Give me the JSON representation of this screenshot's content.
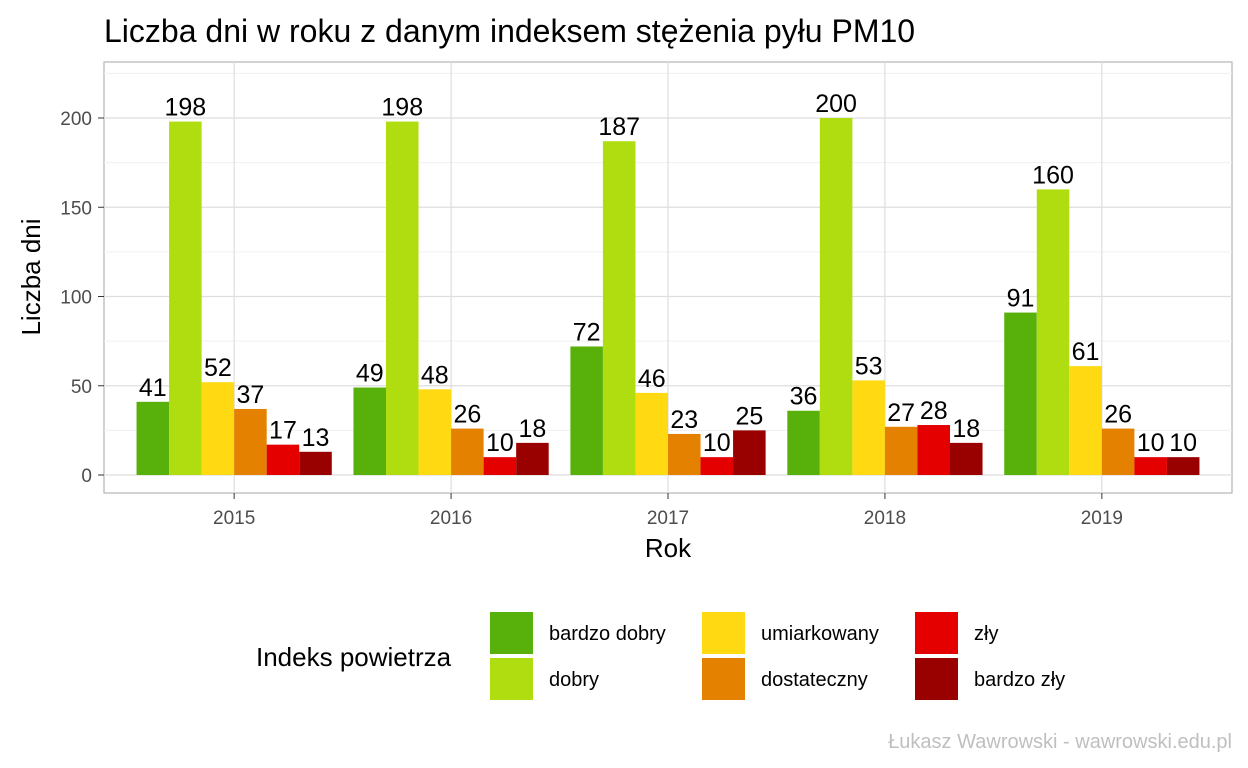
{
  "chart_data": {
    "type": "bar",
    "title": "Liczba dni w roku z danym indeksem stężenia pyłu PM10",
    "xlabel": "Rok",
    "ylabel": "Liczba dni",
    "categories": [
      "2015",
      "2016",
      "2017",
      "2018",
      "2019"
    ],
    "ylim": [
      -10,
      230
    ],
    "yticks": [
      0,
      50,
      100,
      150,
      200
    ],
    "grid": true,
    "legend_position": "bottom",
    "legend_title": "Indeks powietrza",
    "series": [
      {
        "name": "bardzo dobry",
        "color": "#58b10b",
        "values": [
          41,
          49,
          72,
          36,
          91
        ]
      },
      {
        "name": "dobry",
        "color": "#b0dd10",
        "values": [
          198,
          198,
          187,
          200,
          160
        ]
      },
      {
        "name": "umiarkowany",
        "color": "#ffd912",
        "values": [
          52,
          48,
          46,
          53,
          61
        ]
      },
      {
        "name": "dostateczny",
        "color": "#e58100",
        "values": [
          37,
          26,
          23,
          27,
          26
        ]
      },
      {
        "name": "zły",
        "color": "#e50000",
        "values": [
          17,
          10,
          10,
          28,
          10
        ]
      },
      {
        "name": "bardzo zły",
        "color": "#990000",
        "values": [
          13,
          18,
          25,
          18,
          10
        ]
      }
    ],
    "caption": "Łukasz Wawrowski - wawrowski.edu.pl"
  }
}
